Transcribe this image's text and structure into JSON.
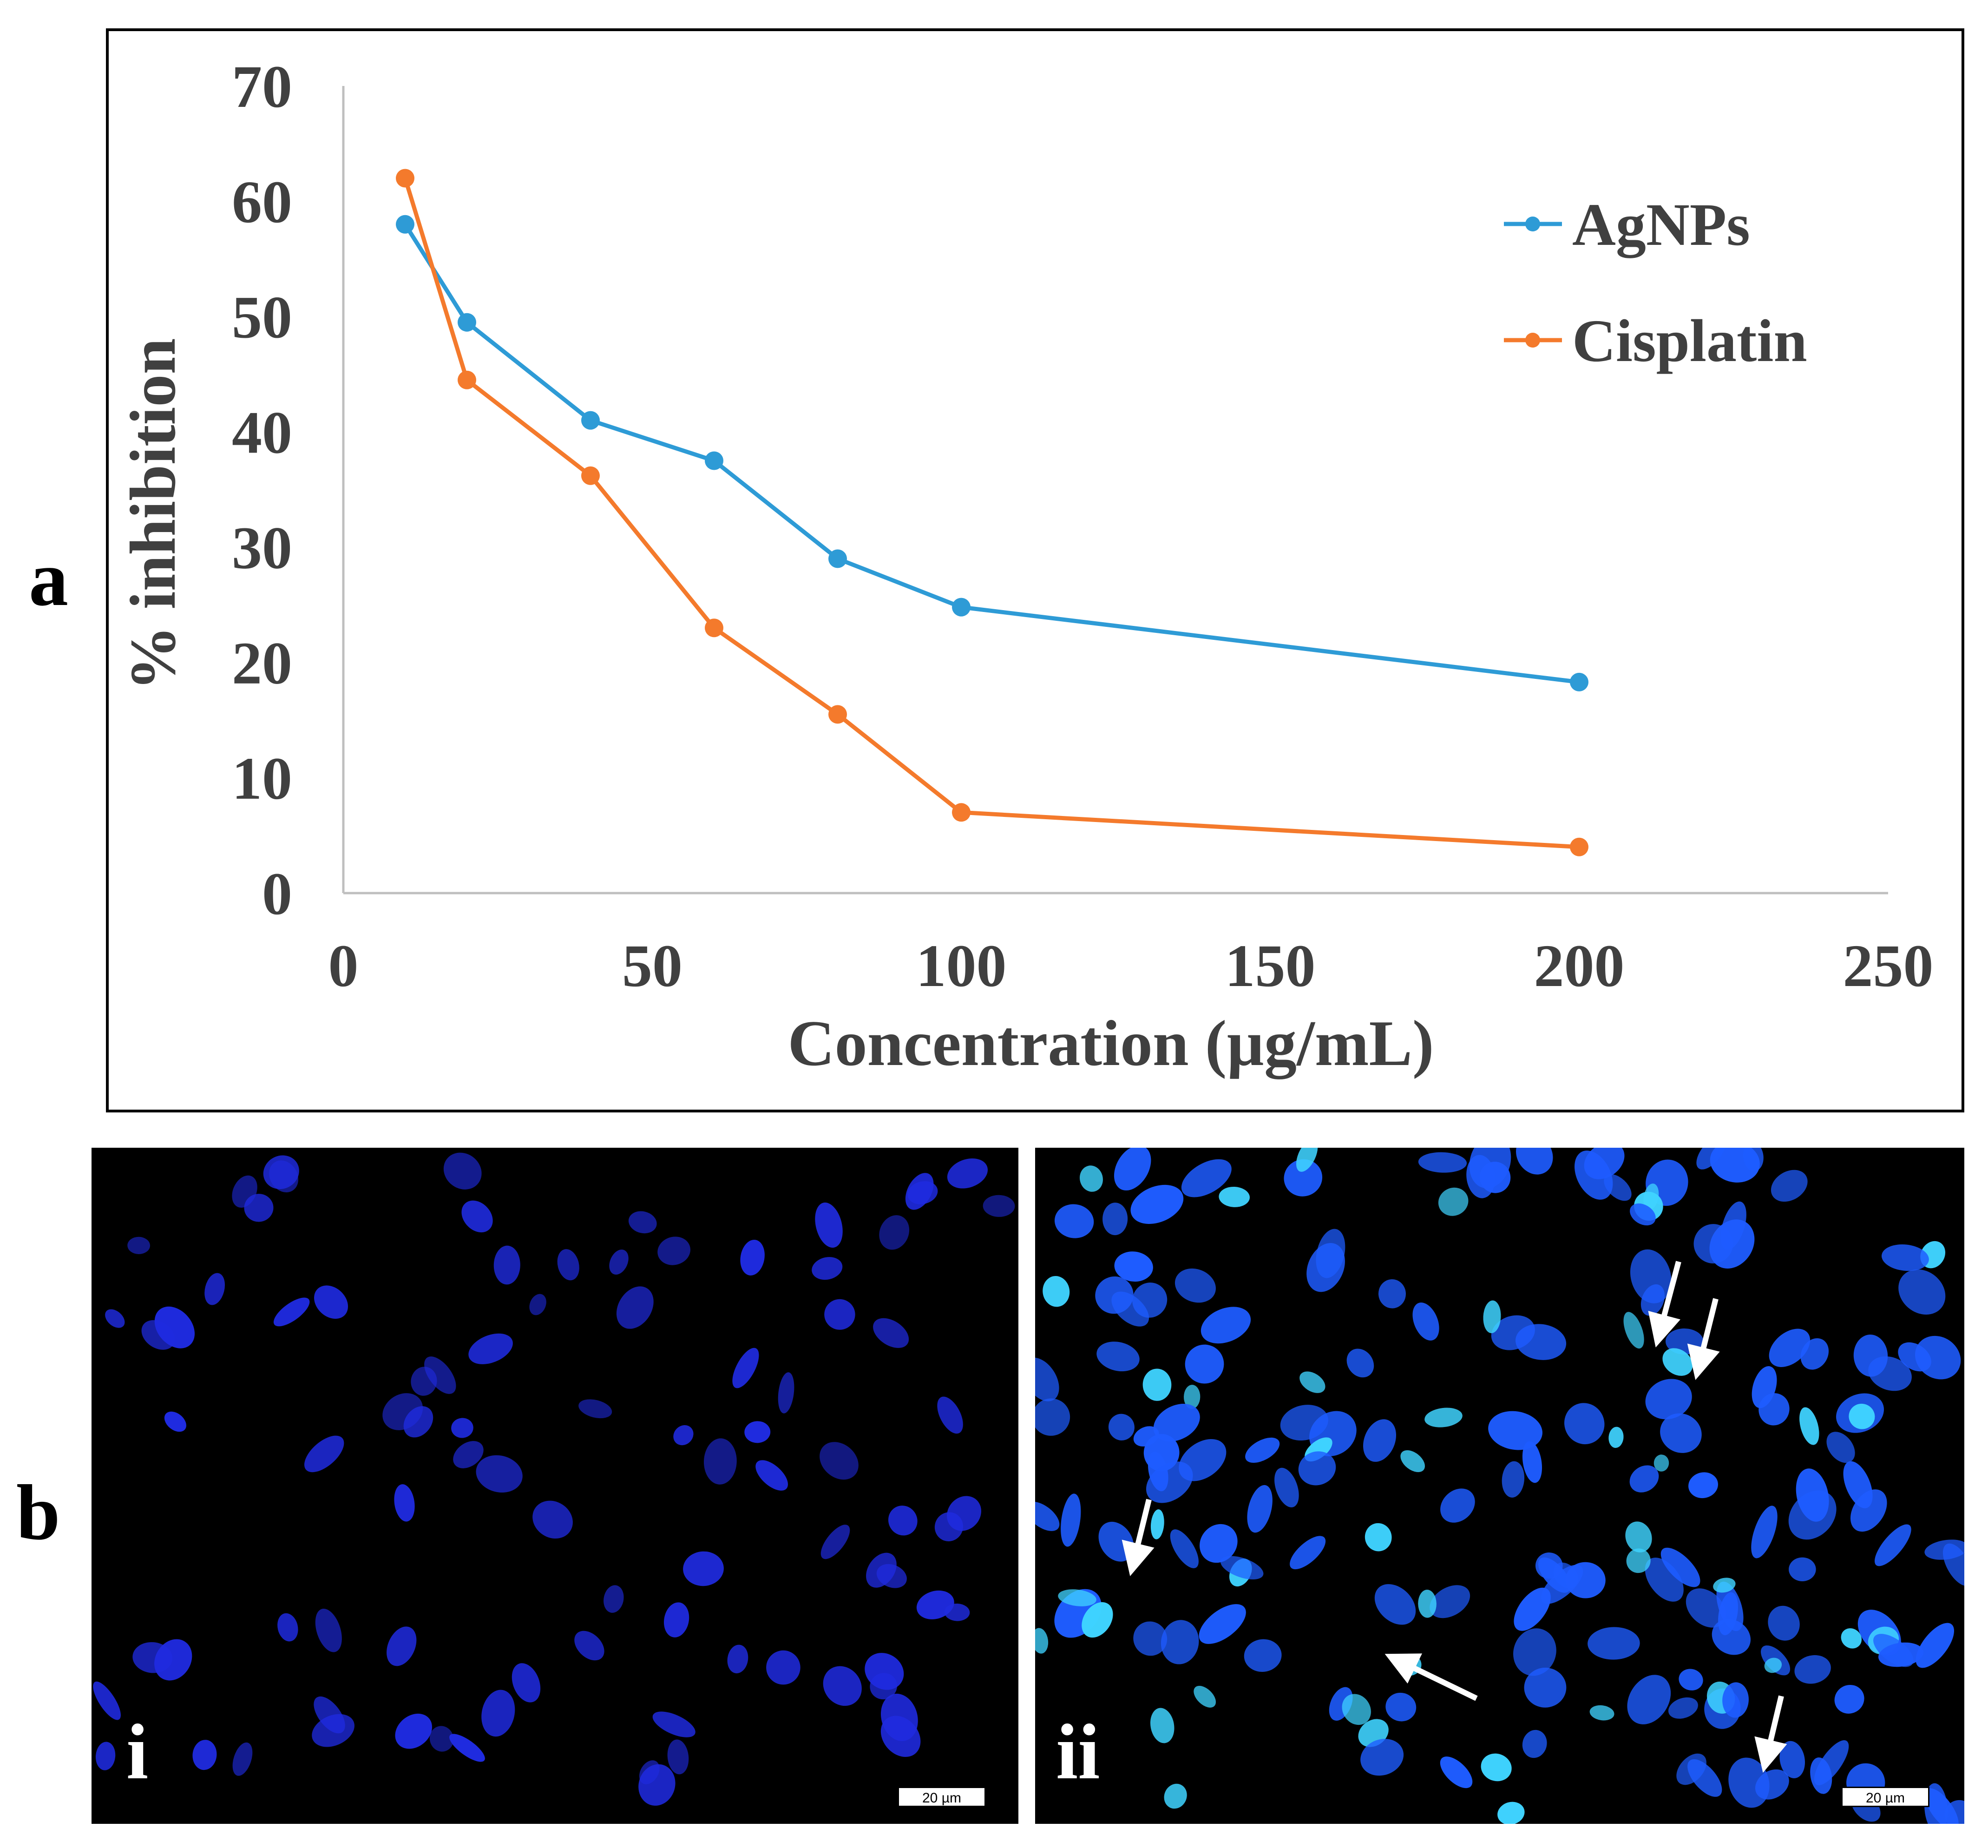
{
  "panels": {
    "a_label": "a",
    "b_label": "b",
    "b_sub_i": "i",
    "b_sub_ii": "ii",
    "scale_bar_text": "20 µm"
  },
  "colors": {
    "agnps": "#2E9BD6",
    "cisplatin": "#F47A2C",
    "axis": "#BFBFBF",
    "tick_text": "#404040",
    "nuclei_control": "#1F2BE0",
    "nuclei_treated": "#1E5CFF",
    "nuclei_bright": "#3FD3FF"
  },
  "chart_data": {
    "type": "line",
    "title": "",
    "xlabel": "Concentration (µg/mL)",
    "ylabel": "% inhibition",
    "xlim": [
      0,
      250
    ],
    "ylim": [
      0,
      70
    ],
    "xticks": [
      "0",
      "50",
      "100",
      "150",
      "200",
      "250"
    ],
    "yticks": [
      "0",
      "10",
      "20",
      "30",
      "40",
      "50",
      "60",
      "70"
    ],
    "legend_position": "top-right",
    "series": [
      {
        "name": "AgNPs",
        "x": [
          10,
          20,
          40,
          60,
          80,
          100,
          200
        ],
        "y": [
          58,
          49.5,
          41,
          37.5,
          29,
          24.8,
          18.3
        ]
      },
      {
        "name": "Cisplatin",
        "x": [
          10,
          20,
          40,
          60,
          80,
          100,
          200
        ],
        "y": [
          62,
          44.5,
          36.2,
          23,
          15.5,
          7,
          4
        ]
      }
    ]
  }
}
